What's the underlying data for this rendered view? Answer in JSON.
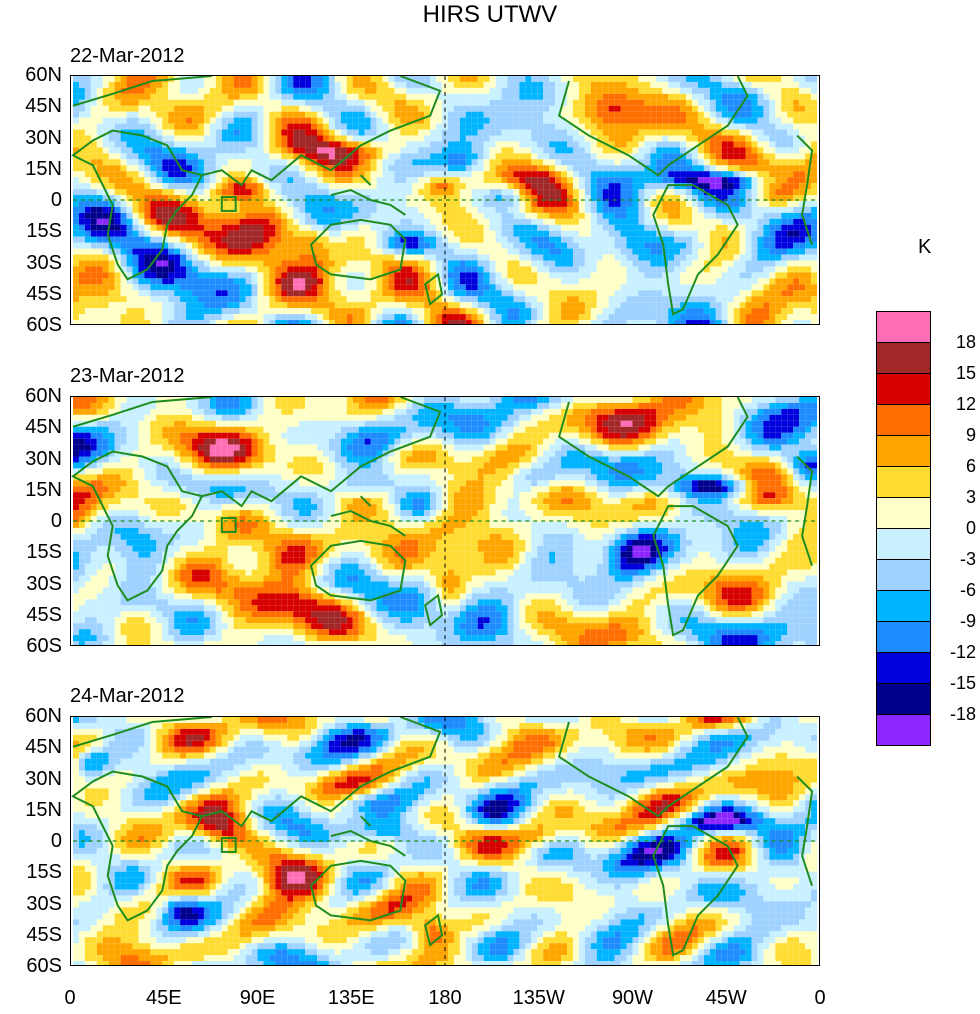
{
  "title": "HIRS UTWV",
  "panels": [
    {
      "date": "22-Mar-2012"
    },
    {
      "date": "23-Mar-2012"
    },
    {
      "date": "24-Mar-2012"
    }
  ],
  "lat_labels": [
    "60N",
    "45N",
    "30N",
    "15N",
    "0",
    "15S",
    "30S",
    "45S",
    "60S"
  ],
  "lon_labels": [
    "0",
    "45E",
    "90E",
    "135E",
    "180",
    "135W",
    "90W",
    "45W",
    "0"
  ],
  "colorbar": {
    "unit": "K",
    "labels": [
      "18",
      "15",
      "12",
      "9",
      "6",
      "3",
      "0",
      "-3",
      "-6",
      "-9",
      "-12",
      "-15",
      "-18"
    ],
    "colors": [
      "#ff6eb4",
      "#a02828",
      "#d70000",
      "#ff6e00",
      "#ffa500",
      "#ffdc32",
      "#ffffc8",
      "#c8f0ff",
      "#a0d2ff",
      "#00b4ff",
      "#1e8cff",
      "#0000dc",
      "#00008c",
      "#8c28ff"
    ]
  },
  "colors": {
    "coast": "#1e8c1e",
    "equator": "#1e8c1e",
    "dateline": "#000000"
  }
}
